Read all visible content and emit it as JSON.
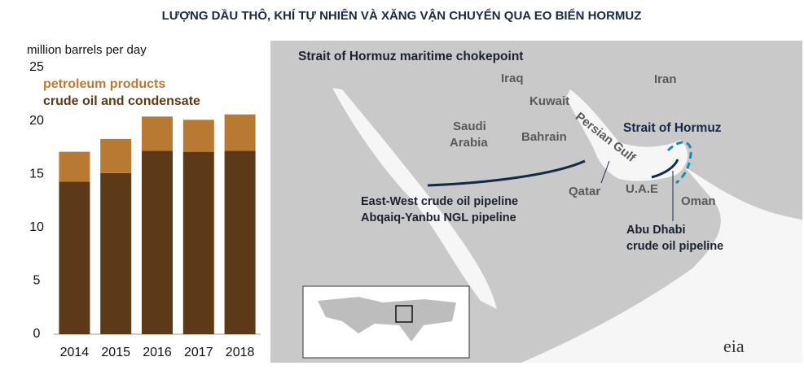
{
  "title": "LƯỢNG DẦU THÔ, KHÍ TỰ NHIÊN VÀ XĂNG VẬN CHUYỂN QUA EO BIỂN HORMUZ",
  "chart_data": {
    "type": "stacked-bar",
    "y_label": "million barrels per day",
    "categories": [
      "2014",
      "2015",
      "2016",
      "2017",
      "2018"
    ],
    "series": [
      {
        "name": "crude oil and condensate",
        "color": "#5c3a17",
        "values": [
          14.3,
          15.1,
          17.2,
          17.1,
          17.2
        ]
      },
      {
        "name": "petroleum products",
        "color": "#b87a33",
        "values": [
          2.8,
          3.2,
          3.2,
          3.0,
          3.4
        ]
      }
    ],
    "ylim": [
      0,
      25
    ],
    "yticks": [
      0,
      5,
      10,
      15,
      20,
      25
    ],
    "grid": false
  },
  "map": {
    "title": "Strait of Hormuz maritime chokepoint",
    "countries": [
      "Iraq",
      "Iran",
      "Kuwait",
      "Saudi",
      "Arabia",
      "Bahrain",
      "Qatar",
      "U.A.E",
      "Oman"
    ],
    "gulf": "Persian Gulf",
    "strait": "Strait of Hormuz",
    "east_west_pipeline": [
      "East-West crude oil pipeline",
      "Abqaiq-Yanbu NGL pipeline"
    ],
    "abu_dhabi_pipeline": [
      "Abu Dhabi",
      "crude oil pipeline"
    ],
    "source": "eia"
  }
}
